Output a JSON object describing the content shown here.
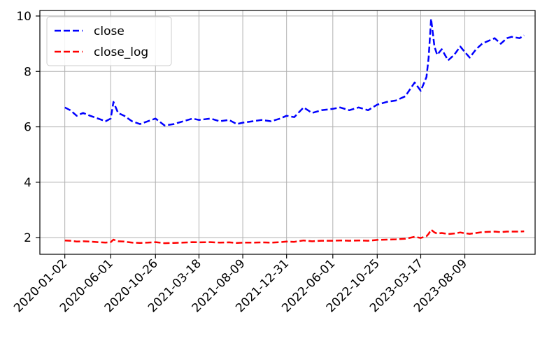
{
  "chart_data": {
    "type": "line",
    "title": "",
    "xlabel": "",
    "ylabel": "",
    "x_tick_labels": [
      "2020-01-02",
      "2020-06-01",
      "2020-10-26",
      "2021-03-18",
      "2021-08-09",
      "2021-12-31",
      "2022-06-01",
      "2022-10-25",
      "2023-03-17",
      "2023-08-09"
    ],
    "y_tick_labels": [
      "2",
      "4",
      "6",
      "8",
      "10"
    ],
    "ylim": [
      1.4,
      10.2
    ],
    "xlim": [
      "2019-10-12",
      "2024-03-27"
    ],
    "grid": true,
    "legend_position": "top-left",
    "x": [
      "2020-01-02",
      "2020-01-20",
      "2020-02-10",
      "2020-03-02",
      "2020-03-25",
      "2020-04-20",
      "2020-05-15",
      "2020-06-01",
      "2020-06-10",
      "2020-06-25",
      "2020-07-15",
      "2020-08-10",
      "2020-09-05",
      "2020-10-01",
      "2020-10-26",
      "2020-11-25",
      "2020-12-25",
      "2021-01-25",
      "2021-02-25",
      "2021-03-18",
      "2021-04-25",
      "2021-05-25",
      "2021-06-25",
      "2021-07-20",
      "2021-08-09",
      "2021-09-10",
      "2021-10-10",
      "2021-11-10",
      "2021-12-10",
      "2021-12-31",
      "2022-01-25",
      "2022-02-25",
      "2022-03-25",
      "2022-04-25",
      "2022-06-01",
      "2022-06-25",
      "2022-07-25",
      "2022-08-25",
      "2022-09-25",
      "2022-10-25",
      "2022-11-25",
      "2022-12-25",
      "2023-01-25",
      "2023-02-25",
      "2023-03-17",
      "2023-04-05",
      "2023-04-12",
      "2023-04-20",
      "2023-05-01",
      "2023-05-10",
      "2023-05-25",
      "2023-06-15",
      "2023-07-05",
      "2023-07-25",
      "2023-08-09",
      "2023-08-25",
      "2023-09-15",
      "2023-10-05",
      "2023-10-25",
      "2023-11-15",
      "2023-12-05",
      "2023-12-25",
      "2024-01-10",
      "2024-02-05",
      "2024-02-20"
    ],
    "series": [
      {
        "name": "close",
        "color": "#0000ff",
        "style": "dashed",
        "values": [
          6.7,
          6.6,
          6.4,
          6.5,
          6.4,
          6.3,
          6.2,
          6.3,
          6.9,
          6.5,
          6.4,
          6.2,
          6.1,
          6.2,
          6.3,
          6.05,
          6.1,
          6.2,
          6.3,
          6.25,
          6.3,
          6.2,
          6.25,
          6.1,
          6.15,
          6.2,
          6.25,
          6.2,
          6.3,
          6.4,
          6.35,
          6.7,
          6.5,
          6.6,
          6.65,
          6.7,
          6.6,
          6.7,
          6.6,
          6.8,
          6.9,
          6.95,
          7.1,
          7.6,
          7.3,
          7.8,
          8.5,
          9.9,
          8.9,
          8.6,
          8.8,
          8.4,
          8.6,
          8.9,
          8.7,
          8.5,
          8.8,
          9.0,
          9.1,
          9.2,
          9.0,
          9.2,
          9.25,
          9.2,
          9.3
        ]
      },
      {
        "name": "close_log",
        "color": "#ff0000",
        "style": "dashed",
        "values": [
          1.9,
          1.89,
          1.86,
          1.87,
          1.86,
          1.84,
          1.82,
          1.84,
          1.93,
          1.87,
          1.86,
          1.82,
          1.81,
          1.82,
          1.84,
          1.8,
          1.81,
          1.82,
          1.84,
          1.83,
          1.84,
          1.82,
          1.83,
          1.81,
          1.82,
          1.82,
          1.83,
          1.82,
          1.84,
          1.86,
          1.85,
          1.9,
          1.87,
          1.89,
          1.89,
          1.9,
          1.89,
          1.9,
          1.89,
          1.92,
          1.93,
          1.94,
          1.96,
          2.03,
          1.99,
          2.05,
          2.14,
          2.29,
          2.19,
          2.15,
          2.17,
          2.13,
          2.15,
          2.19,
          2.16,
          2.14,
          2.17,
          2.2,
          2.21,
          2.22,
          2.2,
          2.22,
          2.22,
          2.22,
          2.23
        ]
      }
    ]
  }
}
